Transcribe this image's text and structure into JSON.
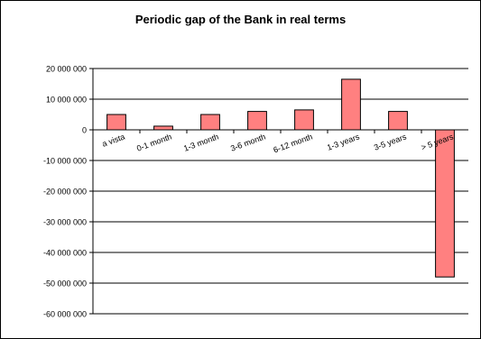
{
  "chart_data": {
    "type": "bar",
    "title": "Periodic gap of the Bank in real terms",
    "categories": [
      "a vista",
      "0-1 month",
      "1-3 month",
      "3-6 month",
      "6-12 month",
      "1-3 years",
      "3-5 years",
      "> 5 years"
    ],
    "values": [
      5000000,
      1200000,
      5000000,
      6000000,
      6500000,
      16500000,
      6000000,
      -48000000
    ],
    "ylim": [
      -60000000,
      20000000
    ],
    "yticks": [
      20000000,
      10000000,
      0,
      -10000000,
      -20000000,
      -30000000,
      -40000000,
      -50000000,
      -60000000
    ],
    "ytick_labels": [
      "20 000 000",
      "10 000 000",
      "0",
      "-10 000 000",
      "-20 000 000",
      "-30 000 000",
      "-40 000 000",
      "-50 000 000",
      "-60 000 000"
    ],
    "grid": true,
    "colors": {
      "bar_fill": "#ff8080",
      "bar_stroke": "#000000",
      "grid": "#000000"
    }
  }
}
